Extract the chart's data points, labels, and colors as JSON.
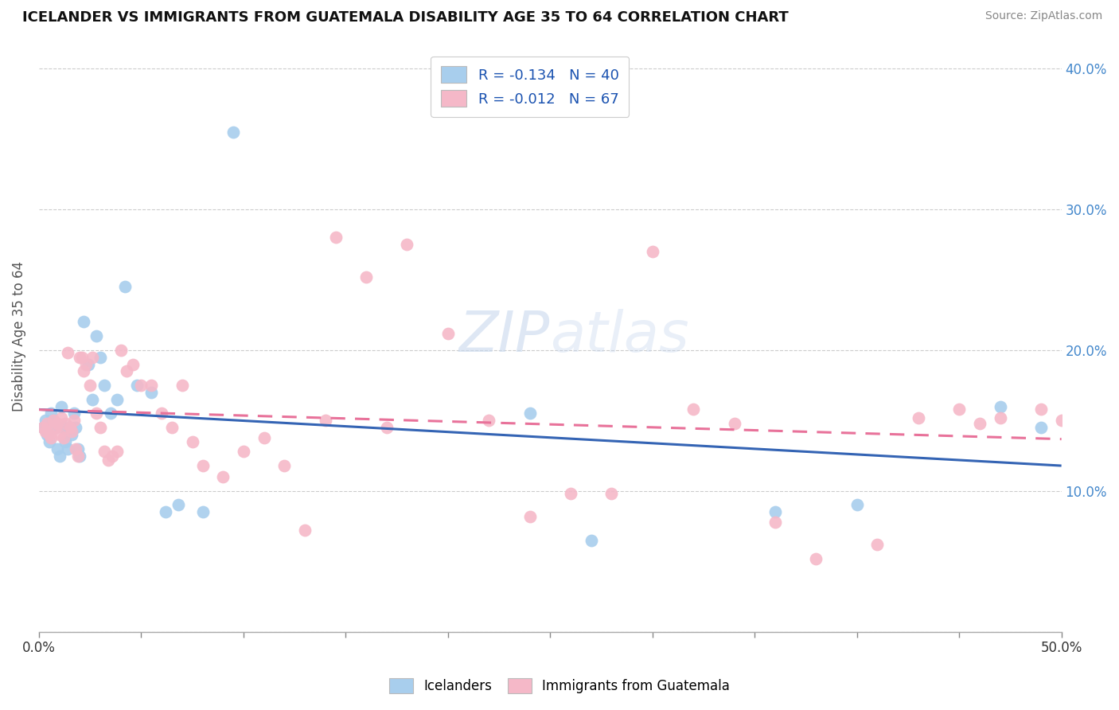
{
  "title": "ICELANDER VS IMMIGRANTS FROM GUATEMALA DISABILITY AGE 35 TO 64 CORRELATION CHART",
  "source": "Source: ZipAtlas.com",
  "ylabel": "Disability Age 35 to 64",
  "xmin": 0.0,
  "xmax": 0.5,
  "ymin": 0.0,
  "ymax": 0.42,
  "color_blue": "#A8CEED",
  "color_pink": "#F5B8C8",
  "line_blue": "#3464B4",
  "line_pink": "#E8729A",
  "legend_r1": "-0.134",
  "legend_n1": "40",
  "legend_r2": "-0.012",
  "legend_n2": "67",
  "blue_x": [
    0.002,
    0.003,
    0.004,
    0.005,
    0.006,
    0.007,
    0.008,
    0.009,
    0.01,
    0.011,
    0.012,
    0.013,
    0.014,
    0.015,
    0.016,
    0.017,
    0.018,
    0.019,
    0.02,
    0.022,
    0.024,
    0.026,
    0.028,
    0.03,
    0.032,
    0.035,
    0.038,
    0.042,
    0.048,
    0.055,
    0.062,
    0.068,
    0.08,
    0.095,
    0.24,
    0.27,
    0.36,
    0.4,
    0.47,
    0.49
  ],
  "blue_y": [
    0.145,
    0.15,
    0.14,
    0.135,
    0.155,
    0.15,
    0.145,
    0.13,
    0.125,
    0.16,
    0.145,
    0.135,
    0.13,
    0.145,
    0.14,
    0.155,
    0.145,
    0.13,
    0.125,
    0.22,
    0.19,
    0.165,
    0.21,
    0.195,
    0.175,
    0.155,
    0.165,
    0.245,
    0.175,
    0.17,
    0.085,
    0.09,
    0.085,
    0.355,
    0.155,
    0.065,
    0.085,
    0.09,
    0.16,
    0.145
  ],
  "pink_x": [
    0.002,
    0.003,
    0.004,
    0.005,
    0.006,
    0.007,
    0.008,
    0.009,
    0.01,
    0.011,
    0.012,
    0.013,
    0.014,
    0.015,
    0.016,
    0.017,
    0.018,
    0.019,
    0.02,
    0.021,
    0.022,
    0.023,
    0.025,
    0.026,
    0.028,
    0.03,
    0.032,
    0.034,
    0.036,
    0.038,
    0.04,
    0.043,
    0.046,
    0.05,
    0.055,
    0.06,
    0.065,
    0.07,
    0.075,
    0.08,
    0.09,
    0.1,
    0.11,
    0.12,
    0.13,
    0.14,
    0.145,
    0.16,
    0.18,
    0.2,
    0.22,
    0.24,
    0.26,
    0.28,
    0.3,
    0.32,
    0.34,
    0.36,
    0.38,
    0.41,
    0.43,
    0.45,
    0.46,
    0.47,
    0.49,
    0.5,
    0.17
  ],
  "pink_y": [
    0.145,
    0.142,
    0.148,
    0.14,
    0.138,
    0.15,
    0.145,
    0.148,
    0.14,
    0.152,
    0.138,
    0.148,
    0.198,
    0.145,
    0.142,
    0.15,
    0.13,
    0.125,
    0.195,
    0.195,
    0.185,
    0.19,
    0.175,
    0.195,
    0.155,
    0.145,
    0.128,
    0.122,
    0.125,
    0.128,
    0.2,
    0.185,
    0.19,
    0.175,
    0.175,
    0.155,
    0.145,
    0.175,
    0.135,
    0.118,
    0.11,
    0.128,
    0.138,
    0.118,
    0.072,
    0.15,
    0.28,
    0.252,
    0.275,
    0.212,
    0.15,
    0.082,
    0.098,
    0.098,
    0.27,
    0.158,
    0.148,
    0.078,
    0.052,
    0.062,
    0.152,
    0.158,
    0.148,
    0.152,
    0.158,
    0.15,
    0.145
  ]
}
